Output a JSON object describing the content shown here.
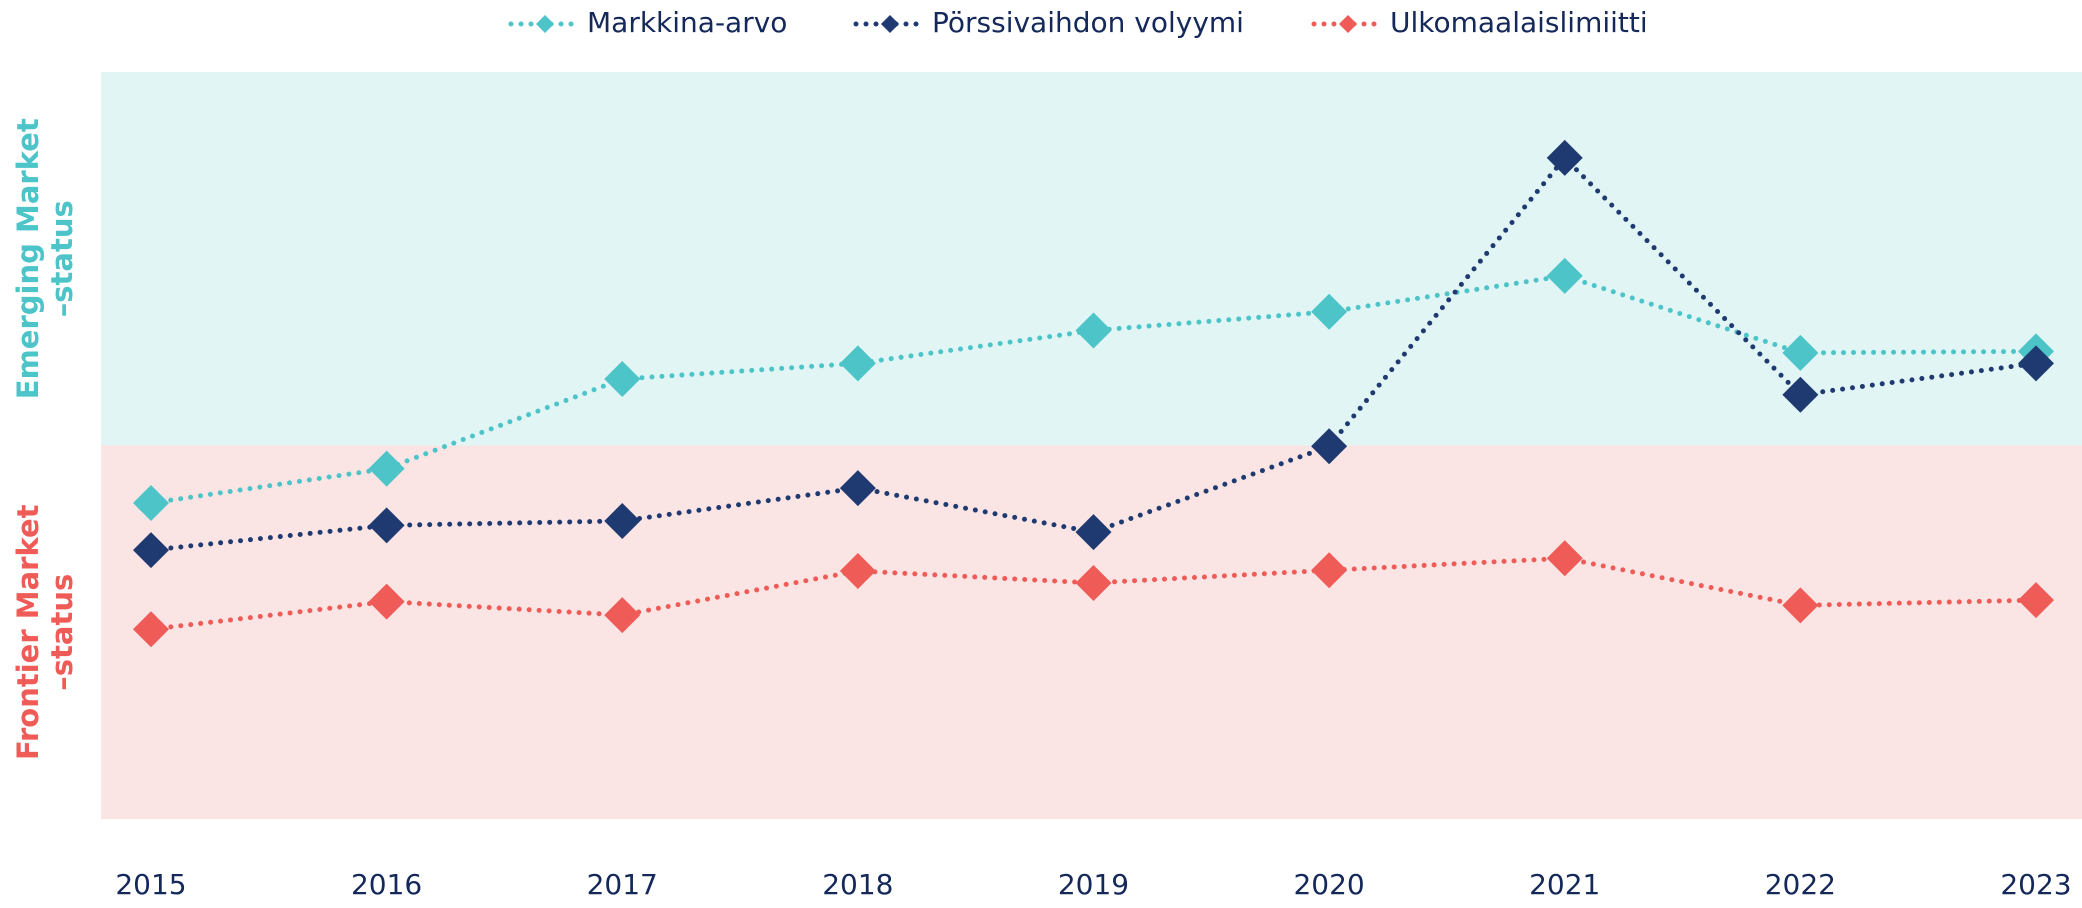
{
  "chart_data": {
    "type": "line",
    "categories": [
      "2015",
      "2016",
      "2017",
      "2018",
      "2019",
      "2020",
      "2021",
      "2022",
      "2023"
    ],
    "ylim": [
      0,
      100
    ],
    "bands": [
      {
        "lines": [
          "Emerging Market",
          "–status"
        ],
        "range": [
          50,
          100
        ],
        "color": "#4cc4c8",
        "fill": "#e0f5f4"
      },
      {
        "lines": [
          "Frontier Market",
          "–status"
        ],
        "range": [
          0,
          50
        ],
        "color": "#ef5b57",
        "fill": "#fbe4e4"
      }
    ],
    "series": [
      {
        "name": "Markkina-arvo",
        "color": "#4cc4c8",
        "values": [
          42.3,
          46.9,
          58.9,
          61.0,
          65.4,
          67.9,
          72.7,
          62.4,
          62.6
        ]
      },
      {
        "name": "Pörssivaihdon volyymi",
        "color": "#1f3a70",
        "values": [
          36.0,
          39.3,
          39.9,
          44.3,
          38.4,
          49.9,
          88.5,
          56.8,
          61.0
        ]
      },
      {
        "name": "Ulkomaalaislimiitti",
        "color": "#ef5b57",
        "values": [
          25.4,
          29.1,
          27.3,
          33.2,
          31.6,
          33.3,
          34.9,
          28.6,
          29.3
        ]
      }
    ],
    "legend": "top"
  }
}
